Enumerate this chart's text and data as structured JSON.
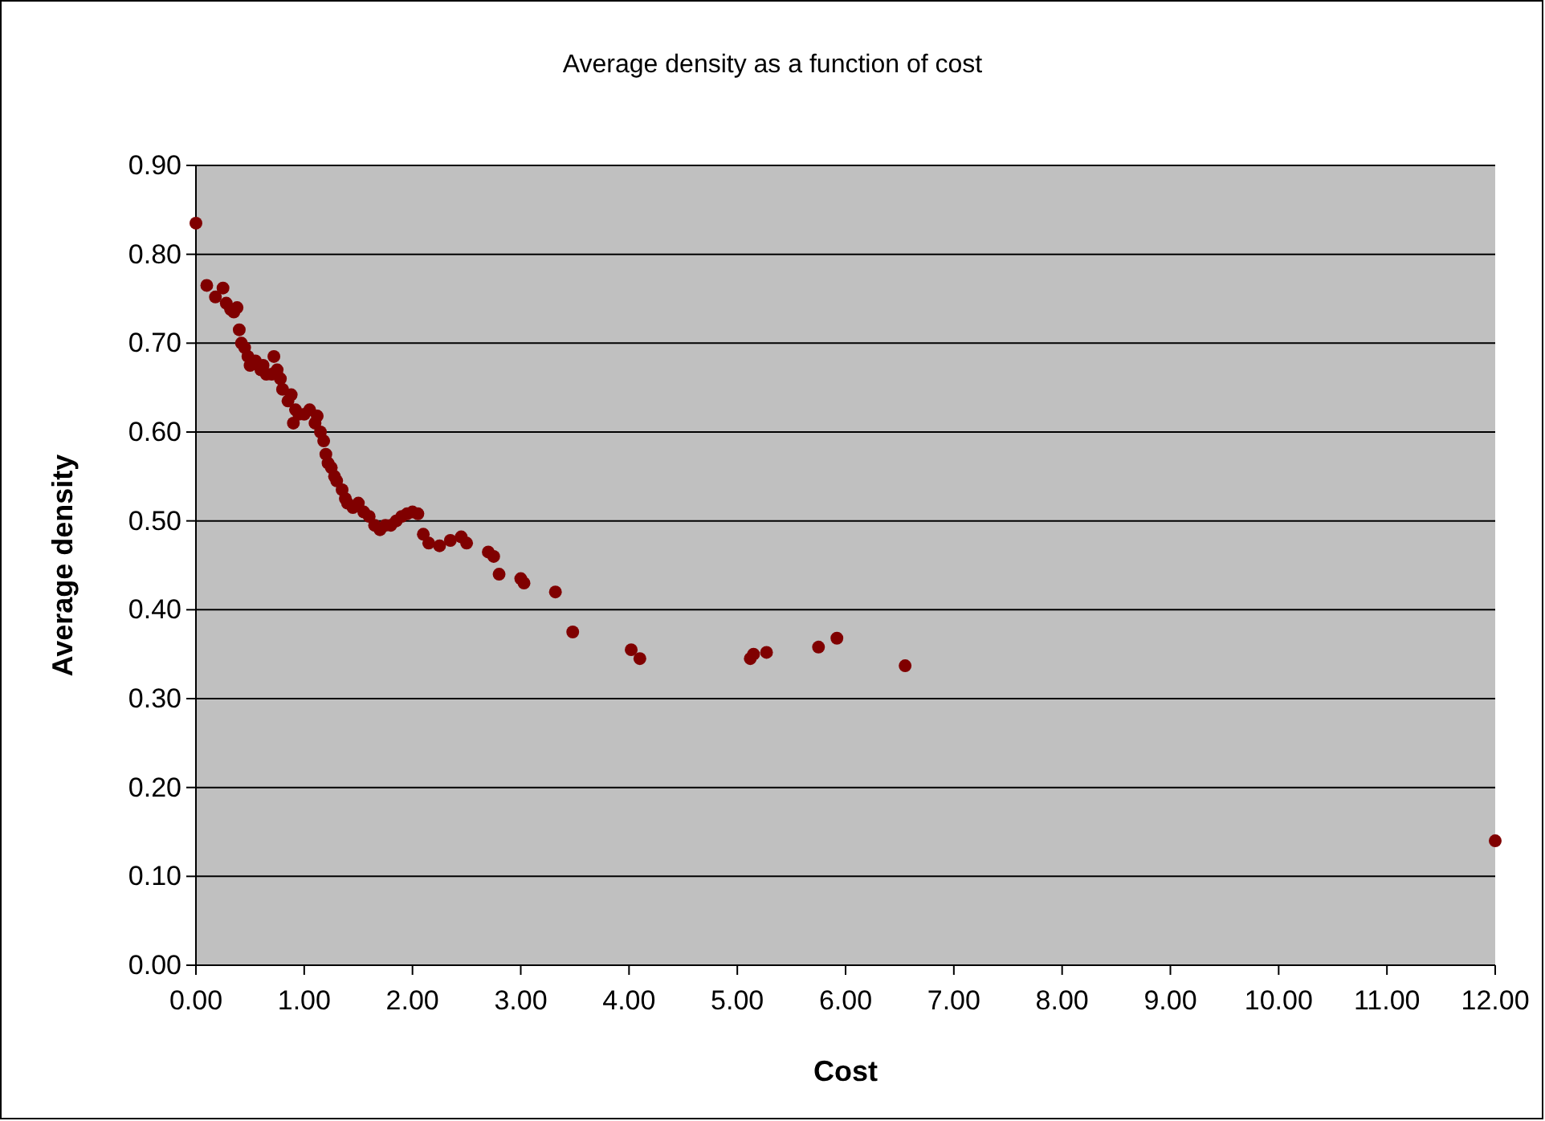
{
  "chart_data": {
    "type": "scatter",
    "title": "Average density as a function of cost",
    "xlabel": "Cost",
    "ylabel": "Average density",
    "xlim": [
      0,
      12
    ],
    "ylim": [
      0,
      0.9
    ],
    "xticks": [
      {
        "value": 0,
        "label": "0.00"
      },
      {
        "value": 1,
        "label": "1.00"
      },
      {
        "value": 2,
        "label": "2.00"
      },
      {
        "value": 3,
        "label": "3.00"
      },
      {
        "value": 4,
        "label": "4.00"
      },
      {
        "value": 5,
        "label": "5.00"
      },
      {
        "value": 6,
        "label": "6.00"
      },
      {
        "value": 7,
        "label": "7.00"
      },
      {
        "value": 8,
        "label": "8.00"
      },
      {
        "value": 9,
        "label": "9.00"
      },
      {
        "value": 10,
        "label": "10.00"
      },
      {
        "value": 11,
        "label": "11.00"
      },
      {
        "value": 12,
        "label": "12.00"
      }
    ],
    "yticks": [
      {
        "value": 0,
        "label": "0.00"
      },
      {
        "value": 0.1,
        "label": "0.10"
      },
      {
        "value": 0.2,
        "label": "0.20"
      },
      {
        "value": 0.3,
        "label": "0.30"
      },
      {
        "value": 0.4,
        "label": "0.40"
      },
      {
        "value": 0.5,
        "label": "0.50"
      },
      {
        "value": 0.6,
        "label": "0.60"
      },
      {
        "value": 0.7,
        "label": "0.70"
      },
      {
        "value": 0.8,
        "label": "0.80"
      },
      {
        "value": 0.9,
        "label": "0.90"
      }
    ],
    "grid": "y",
    "marker": "circle",
    "series": [
      {
        "color": "#800000",
        "x": [
          0.0,
          0.1,
          0.18,
          0.25,
          0.28,
          0.32,
          0.35,
          0.38,
          0.4,
          0.42,
          0.45,
          0.48,
          0.5,
          0.55,
          0.6,
          0.62,
          0.65,
          0.7,
          0.72,
          0.75,
          0.78,
          0.8,
          0.85,
          0.88,
          0.9,
          0.92,
          0.95,
          1.0,
          1.05,
          1.1,
          1.12,
          1.15,
          1.18,
          1.2,
          1.22,
          1.25,
          1.28,
          1.3,
          1.35,
          1.38,
          1.4,
          1.45,
          1.5,
          1.55,
          1.6,
          1.65,
          1.7,
          1.75,
          1.8,
          1.85,
          1.9,
          1.95,
          2.0,
          2.05,
          2.1,
          2.15,
          2.25,
          2.35,
          2.45,
          2.5,
          2.7,
          2.75,
          2.8,
          3.0,
          3.03,
          3.32,
          3.48,
          4.02,
          4.1,
          5.12,
          5.15,
          5.27,
          5.75,
          5.92,
          6.55,
          12.0
        ],
        "values": [
          0.835,
          0.765,
          0.752,
          0.762,
          0.745,
          0.738,
          0.735,
          0.74,
          0.715,
          0.7,
          0.695,
          0.685,
          0.675,
          0.68,
          0.67,
          0.675,
          0.665,
          0.665,
          0.685,
          0.67,
          0.66,
          0.648,
          0.635,
          0.642,
          0.61,
          0.625,
          0.62,
          0.62,
          0.625,
          0.61,
          0.618,
          0.6,
          0.59,
          0.575,
          0.565,
          0.56,
          0.55,
          0.545,
          0.535,
          0.525,
          0.52,
          0.515,
          0.52,
          0.51,
          0.505,
          0.495,
          0.49,
          0.495,
          0.495,
          0.5,
          0.505,
          0.508,
          0.51,
          0.508,
          0.485,
          0.475,
          0.472,
          0.478,
          0.482,
          0.475,
          0.465,
          0.46,
          0.44,
          0.435,
          0.43,
          0.42,
          0.375,
          0.355,
          0.345,
          0.345,
          0.35,
          0.352,
          0.358,
          0.368,
          0.337,
          0.14
        ]
      }
    ]
  }
}
